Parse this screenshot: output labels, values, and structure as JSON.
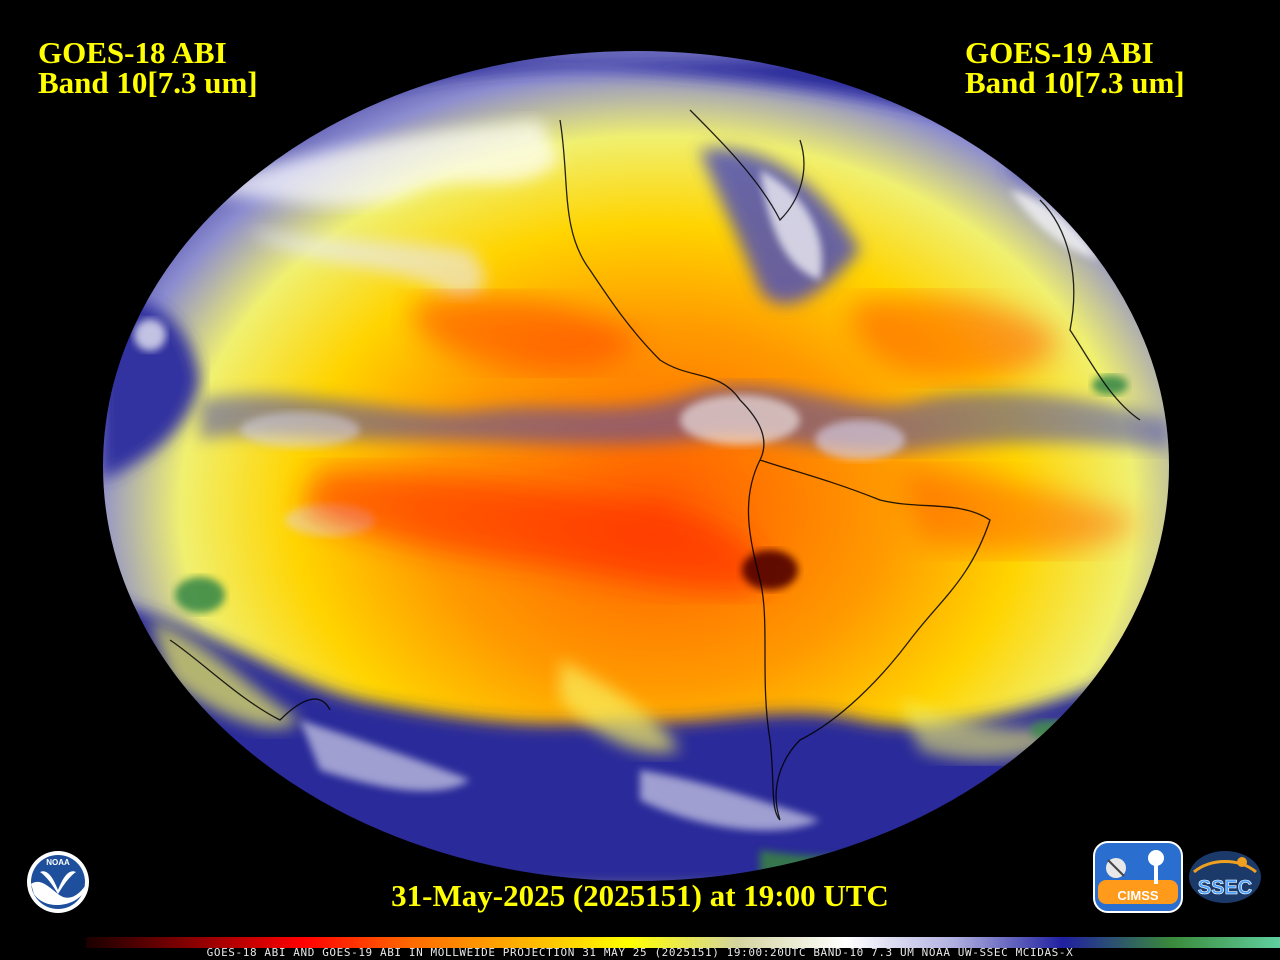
{
  "titles": {
    "left_line1": "GOES-18 ABI",
    "left_line2": "Band 10[7.3 um]",
    "right_line1": "GOES-19 ABI",
    "right_line2": "Band 10[7.3 um]"
  },
  "timestamp": "31-May-2025 (2025151) at 19:00 UTC",
  "footer": "GOES-18 ABI AND GOES-19 ABI IN MOLLWEIDE PROJECTION 31 MAY 25 (2025151) 19:00:20UTC BAND-10 7.3 UM NOAA UW-SSEC MCIDAS-X",
  "logos": {
    "noaa": "NOAA",
    "cimss": "CIMSS",
    "ssec": "SSEC"
  },
  "colors": {
    "label_text": "#ffff00",
    "background": "#000000",
    "colorbar_stops": [
      "#1a0000",
      "#8b0000",
      "#ff0000",
      "#ff6a00",
      "#ffb000",
      "#ffff00",
      "#d4d4a0",
      "#ffffff",
      "#b0b0e0",
      "#2020a0",
      "#3a8a3a",
      "#60d0a0"
    ]
  },
  "icons": {
    "noaa": "noaa-logo-icon",
    "cimss": "cimss-logo-icon",
    "ssec": "ssec-logo-icon"
  }
}
